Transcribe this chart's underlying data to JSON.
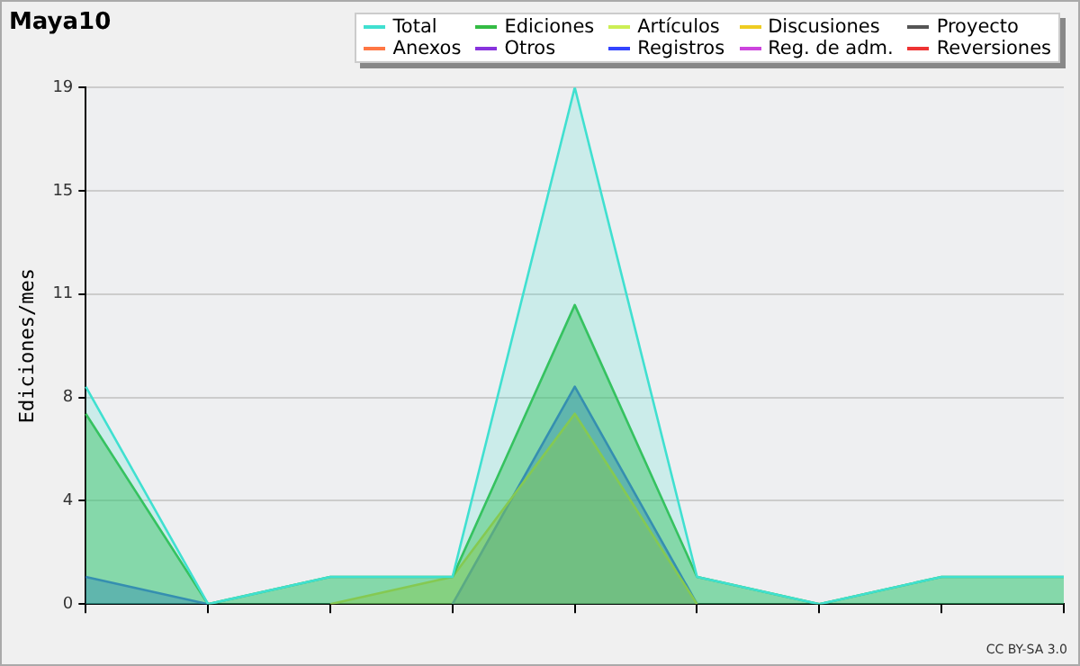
{
  "chart_data": {
    "type": "area",
    "title": "Maya10",
    "ylabel": "Ediciones/mes",
    "categories": [
      null,
      null,
      null,
      null,
      null,
      null,
      null,
      null,
      null
    ],
    "series": [
      {
        "name": "Total",
        "color": "#40e0d0",
        "values": [
          8,
          0,
          1,
          1,
          19,
          1,
          0,
          1,
          1
        ]
      },
      {
        "name": "Ediciones",
        "color": "#33bb44",
        "values": [
          7,
          0,
          1,
          1,
          11,
          1,
          0,
          1,
          1
        ]
      },
      {
        "name": "Artículos",
        "color": "#ccee55",
        "values": [
          null,
          null,
          null,
          null,
          null,
          null,
          null,
          null,
          null
        ]
      },
      {
        "name": "Discusiones",
        "color": "#eecc22",
        "values": [
          null,
          null,
          0,
          1,
          7,
          0,
          null,
          null,
          null
        ]
      },
      {
        "name": "Proyecto",
        "color": "#555555",
        "values": [
          null,
          null,
          null,
          null,
          null,
          null,
          null,
          null,
          null
        ]
      },
      {
        "name": "Anexos",
        "color": "#ff7744",
        "values": [
          null,
          null,
          null,
          null,
          null,
          null,
          null,
          null,
          null
        ]
      },
      {
        "name": "Otros",
        "color": "#8833dd",
        "values": [
          null,
          null,
          null,
          null,
          null,
          null,
          null,
          null,
          null
        ]
      },
      {
        "name": "Registros",
        "color": "#3344ff",
        "values": [
          1,
          0,
          null,
          0,
          8,
          0,
          null,
          null,
          null
        ]
      },
      {
        "name": "Reg. de adm.",
        "color": "#cc44dd",
        "values": [
          null,
          null,
          null,
          null,
          null,
          null,
          null,
          null,
          null
        ]
      },
      {
        "name": "Reversiones",
        "color": "#ee3333",
        "values": [
          null,
          null,
          null,
          null,
          null,
          null,
          null,
          null,
          null
        ]
      }
    ],
    "ylim": [
      0,
      19
    ],
    "yticks": [
      0,
      {
        "value": 3.8,
        "label": "4"
      },
      {
        "value": 7.6,
        "label": "8"
      },
      {
        "value": 11.4,
        "label": "11"
      },
      {
        "value": 15.2,
        "label": "15"
      },
      19
    ],
    "grid": "y",
    "legend": "top right",
    "annotations": [
      "CC BY-SA 3.0"
    ]
  }
}
